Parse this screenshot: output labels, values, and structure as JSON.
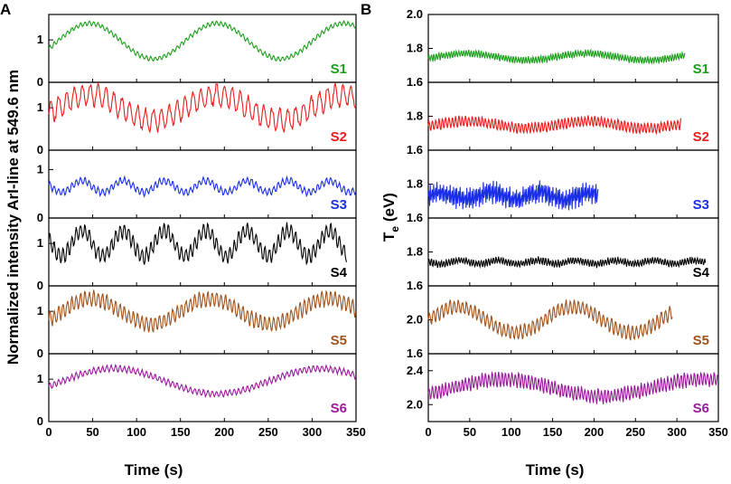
{
  "chart_data": [
    {
      "type": "line",
      "panel_letter": "A",
      "title": "",
      "xlabel": "Time (s)",
      "ylabel": "Normalized intensity ArI-line at 549.6 nm",
      "xlim": [
        0,
        350
      ],
      "x_ticks": [
        0,
        50,
        100,
        150,
        200,
        250,
        300,
        350
      ],
      "x_tick_labels": [
        "0",
        "50",
        "100",
        "150",
        "200",
        "250",
        "300",
        "350"
      ],
      "grid": false,
      "subplots": [
        {
          "label": "S1",
          "color": "#1b9e1b",
          "ylim": [
            0,
            1.6
          ],
          "y_ticks": [
            0,
            1
          ],
          "y_tick_labels": [
            "0",
            "1"
          ],
          "x_range": [
            0,
            350
          ],
          "baseline": 0.97,
          "slow_amplitude": 0.42,
          "slow_period": 145,
          "slow_phase": 10,
          "fast_amplitude": 0.05,
          "fast_period": 5
        },
        {
          "label": "S2",
          "color": "#ee1c1c",
          "ylim": [
            0,
            1.6
          ],
          "y_ticks": [
            0,
            1
          ],
          "y_tick_labels": [
            "0",
            "1"
          ],
          "x_range": [
            0,
            350
          ],
          "baseline": 1.0,
          "slow_amplitude": 0.3,
          "slow_period": 145,
          "slow_phase": 10,
          "fast_amplitude": 0.25,
          "fast_period": 9
        },
        {
          "label": "S3",
          "color": "#1a2ee8",
          "ylim": [
            0,
            1.4
          ],
          "y_ticks": [
            0,
            1
          ],
          "y_tick_labels": [
            "0",
            "1"
          ],
          "x_range": [
            0,
            350
          ],
          "baseline": 0.65,
          "slow_amplitude": 0.12,
          "slow_period": 47,
          "slow_phase": 26,
          "fast_amplitude": 0.07,
          "fast_period": 5
        },
        {
          "label": "S4",
          "color": "#000000",
          "ylim": [
            0,
            1.6
          ],
          "y_ticks": [
            0,
            1
          ],
          "y_tick_labels": [
            "0",
            "1"
          ],
          "x_range": [
            0,
            340
          ],
          "baseline": 1.0,
          "slow_amplitude": 0.3,
          "slow_period": 47,
          "slow_phase": 26,
          "fast_amplitude": 0.17,
          "fast_period": 5
        },
        {
          "label": "S5",
          "color": "#a0521b",
          "ylim": [
            0,
            1.6
          ],
          "y_ticks": [
            0,
            1
          ],
          "y_tick_labels": [
            "0",
            "1"
          ],
          "x_range": [
            0,
            350
          ],
          "baseline": 1.0,
          "slow_amplitude": 0.3,
          "slow_period": 135,
          "slow_phase": 15,
          "fast_amplitude": 0.17,
          "fast_period": 5
        },
        {
          "label": "S6",
          "color": "#9b1a9b",
          "ylim": [
            0,
            1.6
          ],
          "y_ticks": [
            0,
            1
          ],
          "y_tick_labels": [
            "0",
            "1"
          ],
          "x_range": [
            0,
            350
          ],
          "baseline": 0.95,
          "slow_amplitude": 0.3,
          "slow_period": 235,
          "slow_phase": 15,
          "fast_amplitude": 0.07,
          "fast_period": 5
        }
      ]
    },
    {
      "type": "line",
      "panel_letter": "B",
      "title": "",
      "xlabel": "Time (s)",
      "ylabel": "T",
      "ylabel_subscript": "e",
      "ylabel_unit": " (eV)",
      "xlim": [
        0,
        350
      ],
      "x_ticks": [
        0,
        50,
        100,
        150,
        200,
        250,
        300,
        350
      ],
      "x_tick_labels": [
        "0",
        "50",
        "100",
        "150",
        "200",
        "250",
        "300",
        "350"
      ],
      "grid": false,
      "subplots": [
        {
          "label": "S1",
          "color": "#1b9e1b",
          "ylim": [
            1.6,
            2.0
          ],
          "y_ticks": [
            1.6,
            1.8,
            2.0
          ],
          "y_tick_labels": [
            "1.6",
            "1.8",
            "2.0"
          ],
          "x_range": [
            0,
            310
          ],
          "baseline": 1.75,
          "slow_amplitude": 0.02,
          "slow_period": 145,
          "slow_phase": 10,
          "fast_amplitude": 0.02,
          "fast_period": 3
        },
        {
          "label": "S2",
          "color": "#ee1c1c",
          "ylim": [
            1.6,
            2.0
          ],
          "y_ticks": [
            1.6,
            1.8
          ],
          "y_tick_labels": [
            "1.6",
            "1.8"
          ],
          "x_range": [
            0,
            305
          ],
          "baseline": 1.75,
          "slow_amplitude": 0.02,
          "slow_period": 145,
          "slow_phase": 10,
          "fast_amplitude": 0.03,
          "fast_period": 4
        },
        {
          "label": "S3",
          "color": "#1a2ee8",
          "ylim": [
            1.6,
            2.0
          ],
          "y_ticks": [
            1.6,
            1.8
          ],
          "y_tick_labels": [
            "1.6",
            "1.8"
          ],
          "x_range": [
            0,
            205
          ],
          "baseline": 1.73,
          "slow_amplitude": 0.02,
          "slow_period": 60,
          "slow_phase": 0,
          "fast_amplitude": 0.06,
          "fast_period": 2
        },
        {
          "label": "S4",
          "color": "#000000",
          "ylim": [
            1.6,
            2.0
          ],
          "y_ticks": [
            1.6,
            1.8
          ],
          "y_tick_labels": [
            "1.6",
            "1.8"
          ],
          "x_range": [
            0,
            335
          ],
          "baseline": 1.74,
          "slow_amplitude": 0.01,
          "slow_period": 47,
          "slow_phase": 26,
          "fast_amplitude": 0.02,
          "fast_period": 3
        },
        {
          "label": "S5",
          "color": "#a0521b",
          "ylim": [
            1.6,
            2.4
          ],
          "y_ticks": [
            1.6,
            2.0
          ],
          "y_tick_labels": [
            "1.6",
            "2.0"
          ],
          "x_range": [
            0,
            295
          ],
          "baseline": 2.0,
          "slow_amplitude": 0.15,
          "slow_period": 140,
          "slow_phase": 0,
          "fast_amplitude": 0.08,
          "fast_period": 5
        },
        {
          "label": "S6",
          "color": "#9b1a9b",
          "ylim": [
            1.8,
            2.6
          ],
          "y_ticks": [
            2.0,
            2.4
          ],
          "y_tick_labels": [
            "2.0",
            "2.4"
          ],
          "x_range": [
            0,
            350
          ],
          "baseline": 2.2,
          "slow_amplitude": 0.1,
          "slow_period": 240,
          "slow_phase": 30,
          "fast_amplitude": 0.08,
          "fast_period": 4
        }
      ]
    }
  ]
}
